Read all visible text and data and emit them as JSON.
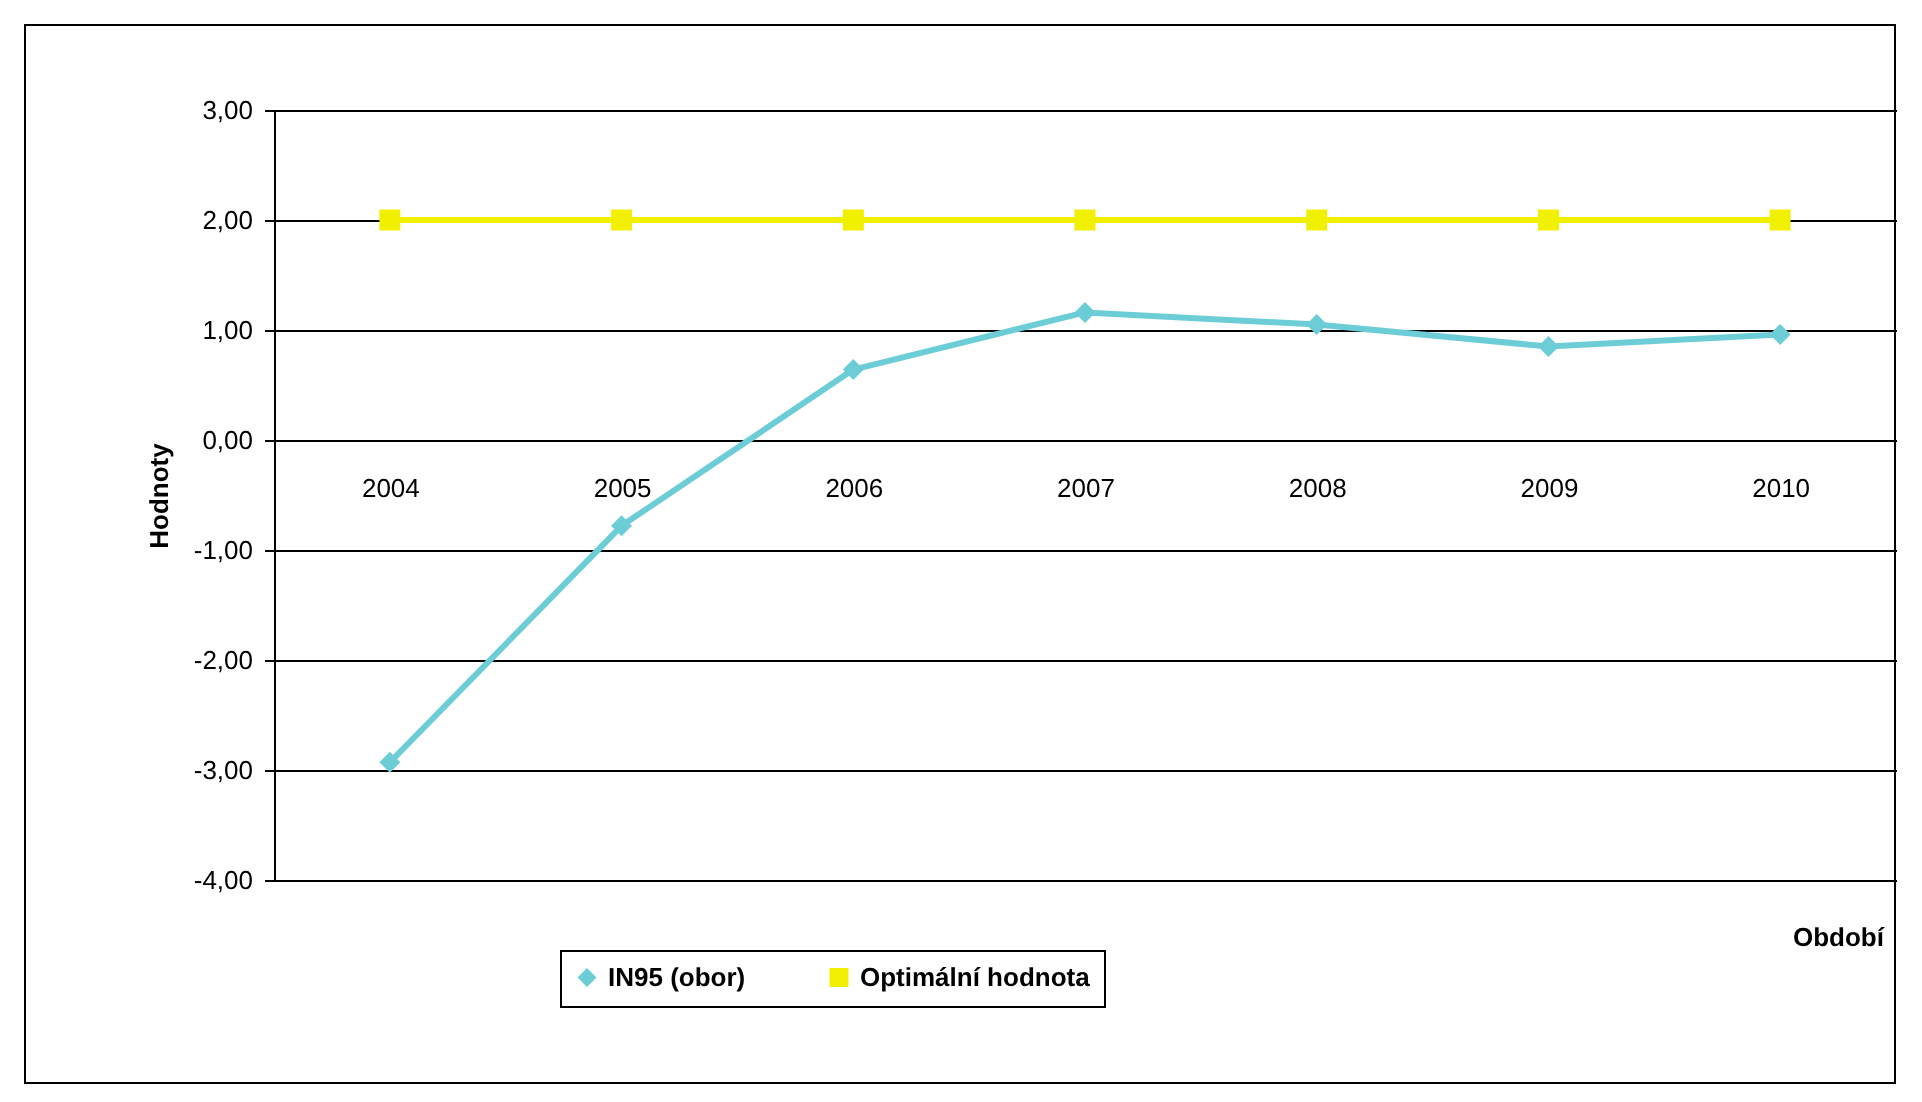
{
  "chart_data": {
    "type": "line",
    "ylabel": "Hodnoty",
    "xlabel": "Období",
    "categories": [
      "2004",
      "2005",
      "2006",
      "2007",
      "2008",
      "2009",
      "2010"
    ],
    "series": [
      {
        "name": "IN95 (obor)",
        "color": "#6dcdd6",
        "marker": "diamond",
        "values": [
          -2.93,
          -0.78,
          0.64,
          1.16,
          1.05,
          0.85,
          0.96
        ]
      },
      {
        "name": "Optimální hodnota",
        "color": "#f0f000",
        "marker": "square",
        "values": [
          2,
          2,
          2,
          2,
          2,
          2,
          2
        ]
      }
    ],
    "ylim": [
      -4,
      3
    ],
    "yticks": [
      {
        "value": -4,
        "label": "-4,00"
      },
      {
        "value": -3,
        "label": "-3,00"
      },
      {
        "value": -2,
        "label": "-2,00"
      },
      {
        "value": -1,
        "label": "-1,00"
      },
      {
        "value": 0,
        "label": "0,00"
      },
      {
        "value": 1,
        "label": "1,00"
      },
      {
        "value": 2,
        "label": "2,00"
      },
      {
        "value": 3,
        "label": "3,00"
      }
    ],
    "grid": "y",
    "legend": "bottom",
    "line_style": "solid"
  }
}
